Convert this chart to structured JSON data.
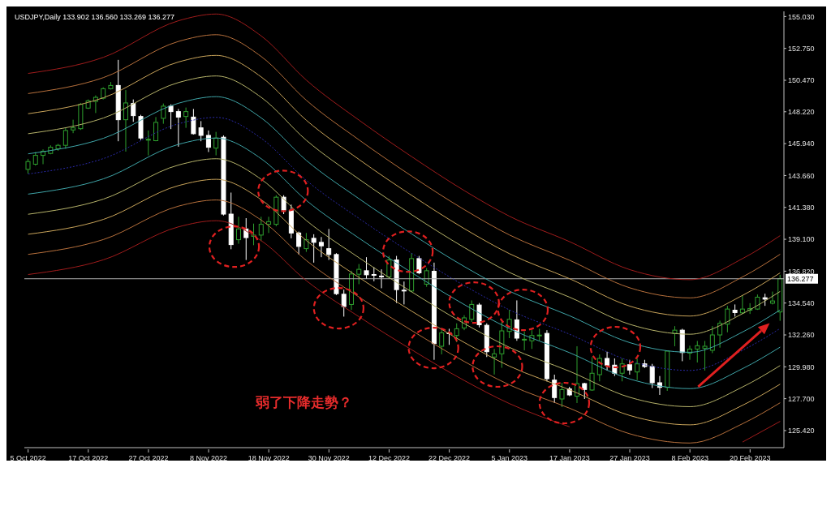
{
  "chart_data": {
    "type": "candlestick",
    "title": "USDJPY,Daily 133.902 136.560 133.269 136.277",
    "annotations": [
      "弱了下降走勢？"
    ],
    "categories": [
      "5 Oct 2022",
      null,
      null,
      null,
      null,
      null,
      null,
      null,
      "17 Oct 2022",
      null,
      null,
      null,
      null,
      null,
      null,
      null,
      "27 Oct 2022",
      null,
      null,
      null,
      null,
      null,
      null,
      null,
      "8 Nov 2022",
      null,
      null,
      null,
      null,
      null,
      null,
      null,
      "18 Nov 2022",
      null,
      null,
      null,
      null,
      null,
      null,
      null,
      "30 Nov 2022",
      null,
      null,
      null,
      null,
      null,
      null,
      null,
      "12 Dec 2022",
      null,
      null,
      null,
      null,
      null,
      null,
      null,
      "22 Dec 2022",
      null,
      null,
      null,
      null,
      null,
      null,
      null,
      "5 Jan 2023",
      null,
      null,
      null,
      null,
      null,
      null,
      null,
      "17 Jan 2023",
      null,
      null,
      null,
      null,
      null,
      null,
      null,
      "27 Jan 2023",
      null,
      null,
      null,
      null,
      null,
      null,
      null,
      "8 Feb 2023",
      null,
      null,
      null,
      null,
      null,
      null,
      null,
      "20 Feb 2023",
      null,
      null,
      null,
      null
    ],
    "ohlc": [
      [
        144.1,
        144.85,
        143.8,
        144.66
      ],
      [
        144.47,
        145.34,
        144.37,
        145.1
      ],
      [
        145.1,
        145.53,
        144.47,
        145.39
      ],
      [
        145.24,
        145.82,
        145.18,
        145.68
      ],
      [
        145.57,
        145.92,
        145.43,
        145.82
      ],
      [
        145.82,
        147.07,
        145.57,
        146.88
      ],
      [
        146.92,
        147.65,
        146.69,
        147.07
      ],
      [
        147.01,
        148.85,
        146.92,
        148.75
      ],
      [
        148.48,
        149.1,
        148.42,
        149.0
      ],
      [
        148.96,
        149.39,
        148.13,
        149.25
      ],
      [
        149.19,
        149.97,
        149.1,
        149.87
      ],
      [
        149.87,
        150.35,
        149.81,
        150.1
      ],
      [
        150.1,
        151.93,
        146.11,
        147.65
      ],
      [
        147.65,
        149.77,
        145.37,
        148.85
      ],
      [
        148.81,
        149.1,
        147.5,
        147.94
      ],
      [
        147.88,
        148.0,
        146.2,
        146.34
      ],
      [
        146.2,
        146.88,
        145.1,
        146.25
      ],
      [
        146.15,
        147.84,
        146.11,
        147.46
      ],
      [
        147.75,
        148.81,
        147.36,
        148.62
      ],
      [
        148.62,
        148.75,
        146.98,
        148.23
      ],
      [
        148.23,
        148.42,
        145.72,
        147.84
      ],
      [
        147.88,
        148.52,
        147.07,
        148.23
      ],
      [
        147.84,
        148.42,
        146.59,
        146.65
      ],
      [
        147.07,
        147.55,
        146.11,
        146.53
      ],
      [
        146.53,
        146.88,
        145.34,
        145.68
      ],
      [
        145.62,
        146.78,
        145.1,
        146.34
      ],
      [
        146.4,
        146.53,
        140.8,
        140.9
      ],
      [
        140.9,
        142.44,
        138.39,
        138.72
      ],
      [
        139.07,
        140.71,
        138.78,
        139.84
      ],
      [
        139.84,
        140.61,
        137.62,
        139.22
      ],
      [
        139.31,
        140.22,
        138.68,
        139.4
      ],
      [
        139.4,
        140.71,
        138.97,
        140.17
      ],
      [
        140.17,
        140.71,
        139.55,
        140.36
      ],
      [
        140.17,
        142.25,
        140.03,
        142.11
      ],
      [
        142.11,
        142.25,
        140.9,
        141.19
      ],
      [
        141.15,
        141.58,
        139.17,
        139.55
      ],
      [
        139.55,
        139.65,
        138.01,
        138.59
      ],
      [
        138.43,
        139.55,
        138.2,
        139.07
      ],
      [
        139.17,
        139.46,
        137.43,
        138.88
      ],
      [
        138.88,
        139.26,
        137.82,
        138.63
      ],
      [
        138.43,
        139.84,
        137.62,
        138.01
      ],
      [
        138.01,
        138.11,
        135.11,
        135.21
      ],
      [
        135.17,
        135.5,
        133.57,
        134.29
      ],
      [
        134.44,
        136.85,
        134.05,
        136.62
      ],
      [
        136.6,
        137.33,
        135.89,
        136.95
      ],
      [
        136.85,
        137.82,
        136.27,
        136.56
      ],
      [
        136.58,
        137.1,
        136.1,
        136.56
      ],
      [
        136.47,
        136.95,
        135.6,
        136.46
      ],
      [
        136.41,
        137.91,
        136.27,
        137.62
      ],
      [
        137.62,
        137.91,
        134.54,
        135.5
      ],
      [
        135.46,
        136.08,
        134.44,
        135.44
      ],
      [
        135.4,
        138.11,
        135.31,
        137.72
      ],
      [
        137.72,
        137.91,
        136.6,
        136.7
      ],
      [
        135.89,
        137.04,
        135.7,
        136.85
      ],
      [
        136.81,
        137.43,
        130.48,
        131.64
      ],
      [
        131.45,
        132.6,
        130.87,
        132.41
      ],
      [
        132.41,
        132.7,
        131.55,
        132.36
      ],
      [
        132.22,
        133.09,
        131.74,
        132.7
      ],
      [
        132.76,
        133.67,
        132.6,
        133.48
      ],
      [
        133.38,
        134.73,
        133.19,
        134.44
      ],
      [
        134.4,
        134.54,
        132.8,
        132.99
      ],
      [
        132.95,
        133.09,
        130.68,
        131.06
      ],
      [
        130.68,
        131.26,
        129.43,
        130.91
      ],
      [
        130.91,
        133.19,
        129.91,
        132.55
      ],
      [
        132.51,
        134.05,
        132.03,
        133.38
      ],
      [
        133.34,
        134.73,
        131.84,
        132.03
      ],
      [
        131.93,
        132.51,
        131.16,
        131.95
      ],
      [
        131.84,
        132.6,
        131.26,
        132.22
      ],
      [
        132.2,
        132.7,
        131.84,
        132.25
      ],
      [
        132.37,
        132.6,
        128.94,
        129.13
      ],
      [
        129.03,
        129.42,
        127.39,
        127.78
      ],
      [
        127.68,
        128.84,
        127.1,
        128.35
      ],
      [
        128.4,
        128.55,
        127.88,
        127.97
      ],
      [
        127.88,
        131.45,
        127.39,
        128.78
      ],
      [
        128.78,
        128.84,
        127.68,
        128.36
      ],
      [
        128.32,
        130.67,
        128.26,
        129.52
      ],
      [
        129.42,
        130.87,
        128.94,
        130.58
      ],
      [
        130.58,
        131.06,
        129.71,
        130.1
      ],
      [
        130.1,
        130.58,
        129.32,
        129.52
      ],
      [
        129.52,
        130.58,
        128.94,
        130.19
      ],
      [
        130.13,
        130.48,
        129.42,
        129.75
      ],
      [
        129.61,
        130.58,
        129.03,
        130.19
      ],
      [
        130.19,
        130.48,
        129.9,
        130.0
      ],
      [
        130.0,
        130.19,
        128.46,
        128.84
      ],
      [
        128.84,
        129.32,
        127.97,
        128.51
      ],
      [
        128.51,
        131.16,
        128.26,
        131.1
      ],
      [
        132.37,
        132.89,
        131.45,
        132.6
      ],
      [
        132.6,
        132.7,
        130.38,
        131.0
      ],
      [
        130.96,
        131.49,
        130.48,
        131.25
      ],
      [
        131.25,
        131.83,
        130.29,
        131.49
      ],
      [
        131.31,
        131.83,
        129.71,
        131.45
      ],
      [
        131.16,
        132.89,
        130.96,
        132.26
      ],
      [
        132.26,
        133.28,
        131.35,
        133.09
      ],
      [
        133.03,
        134.34,
        132.45,
        134.11
      ],
      [
        134.03,
        134.44,
        133.57,
        133.86
      ],
      [
        133.84,
        135.11,
        133.76,
        134.11
      ],
      [
        134.03,
        134.53,
        133.76,
        134.15
      ],
      [
        134.11,
        135.15,
        134.05,
        134.96
      ],
      [
        134.92,
        135.21,
        134.34,
        134.82
      ],
      [
        134.53,
        135.36,
        134.44,
        134.69
      ],
      [
        133.902,
        136.56,
        133.269,
        136.277
      ]
    ],
    "colors": [
      "#2ea02e",
      "#2ea02e",
      "#2ea02e",
      "#2ea02e",
      "#2ea02e",
      "#2ea02e",
      "#2ea02e",
      "#2ea02e",
      "#2ea02e",
      "#2ea02e",
      "#2ea02e",
      "#2ea02e",
      "#ffffff",
      "#2ea02e",
      "#ffffff",
      "#ffffff",
      "#2ea02e",
      "#2ea02e",
      "#2ea02e",
      "#ffffff",
      "#ffffff",
      "#2ea02e",
      "#ffffff",
      "#ffffff",
      "#ffffff",
      "#2ea02e",
      "#ffffff",
      "#ffffff",
      "#2ea02e",
      "#ffffff",
      "#2ea02e",
      "#2ea02e",
      "#2ea02e",
      "#2ea02e",
      "#ffffff",
      "#ffffff",
      "#ffffff",
      "#2ea02e",
      "#ffffff",
      "#ffffff",
      "#ffffff",
      "#ffffff",
      "#ffffff",
      "#2ea02e",
      "#2ea02e",
      "#ffffff",
      "#ffffff",
      "#ffffff",
      "#2ea02e",
      "#ffffff",
      "#ffffff",
      "#2ea02e",
      "#ffffff",
      "#2ea02e",
      "#ffffff",
      "#2ea02e",
      "#ffffff",
      "#2ea02e",
      "#2ea02e",
      "#2ea02e",
      "#ffffff",
      "#ffffff",
      "#2ea02e",
      "#2ea02e",
      "#2ea02e",
      "#ffffff",
      "#2ea02e",
      "#2ea02e",
      "#2ea02e",
      "#ffffff",
      "#ffffff",
      "#2ea02e",
      "#ffffff",
      "#2ea02e",
      "#ffffff",
      "#2ea02e",
      "#2ea02e",
      "#ffffff",
      "#ffffff",
      "#2ea02e",
      "#ffffff",
      "#2ea02e",
      "#ffffff",
      "#ffffff",
      "#ffffff",
      "#2ea02e",
      "#2ea02e",
      "#ffffff",
      "#2ea02e",
      "#2ea02e",
      "#2ea02e",
      "#2ea02e",
      "#2ea02e",
      "#2ea02e",
      "#ffffff",
      "#2ea02e",
      "#2ea02e",
      "#2ea02e",
      "#ffffff",
      "#2ea02e",
      "#2ea02e"
    ],
    "series": [
      {
        "type": "line",
        "color": "#a01c1c",
        "values": [
          150.96,
          null,
          null,
          null,
          null,
          null,
          null,
          null,
          null,
          null,
          152.11,
          null,
          null,
          null,
          null,
          null,
          null,
          null,
          null,
          null,
          154.73,
          null,
          null,
          null,
          null,
          155.21,
          null,
          null,
          null,
          null,
          null,
          153.64,
          null,
          null,
          null,
          null,
          null,
          150.48,
          null,
          null,
          null,
          null,
          null,
          null,
          147.62,
          null,
          null,
          null,
          null,
          null,
          null,
          145.01,
          null,
          null,
          null,
          null,
          null,
          null,
          142.58,
          null,
          null,
          null,
          null,
          null,
          140.75,
          null,
          null,
          null,
          null,
          null,
          null,
          null,
          138.93,
          null,
          null,
          null,
          null,
          null,
          null,
          null,
          136.93,
          null,
          null,
          null,
          null,
          null,
          null,
          null,
          136.21,
          null,
          null,
          null,
          null,
          null,
          null,
          137.72,
          null,
          null,
          null,
          null,
          139.36
        ]
      },
      {
        "type": "line",
        "color": "#b7703c",
        "values": [
          149.52,
          null,
          null,
          null,
          null,
          null,
          null,
          null,
          null,
          null,
          150.66,
          null,
          null,
          null,
          null,
          null,
          null,
          null,
          null,
          null,
          153.25,
          null,
          null,
          null,
          null,
          153.73,
          null,
          null,
          null,
          null,
          null,
          152.17,
          null,
          null,
          null,
          null,
          null,
          149.04,
          null,
          null,
          null,
          null,
          null,
          null,
          146.21,
          null,
          null,
          null,
          null,
          null,
          null,
          143.62,
          null,
          null,
          null,
          null,
          null,
          null,
          141.22,
          null,
          null,
          null,
          null,
          null,
          139.41,
          null,
          null,
          null,
          null,
          null,
          null,
          null,
          137.6,
          null,
          null,
          null,
          null,
          null,
          null,
          null,
          135.63,
          null,
          null,
          null,
          null,
          null,
          null,
          null,
          134.91,
          null,
          null,
          null,
          null,
          null,
          null,
          136.41,
          null,
          null,
          null,
          null,
          138.03
        ]
      },
      {
        "type": "line",
        "color": "#c9a45a",
        "values": [
          148.08,
          null,
          null,
          null,
          null,
          null,
          null,
          null,
          null,
          null,
          149.22,
          null,
          null,
          null,
          null,
          null,
          null,
          null,
          null,
          null,
          151.78,
          null,
          null,
          null,
          null,
          152.25,
          null,
          null,
          null,
          null,
          null,
          150.71,
          null,
          null,
          null,
          null,
          null,
          147.61,
          null,
          null,
          null,
          null,
          null,
          null,
          144.81,
          null,
          null,
          null,
          null,
          null,
          null,
          142.24,
          null,
          null,
          null,
          null,
          null,
          null,
          139.86,
          null,
          null,
          null,
          null,
          null,
          138.07,
          null,
          null,
          null,
          null,
          null,
          null,
          null,
          136.28,
          null,
          null,
          null,
          null,
          null,
          null,
          null,
          134.32,
          null,
          null,
          null,
          null,
          null,
          null,
          null,
          133.61,
          null,
          null,
          null,
          null,
          null,
          null,
          135.09,
          null,
          null,
          null,
          null,
          136.7
        ]
      },
      {
        "type": "line",
        "color": "#b6b36a",
        "values": [
          146.65,
          null,
          null,
          null,
          null,
          null,
          null,
          null,
          null,
          null,
          147.77,
          null,
          null,
          null,
          null,
          null,
          null,
          null,
          null,
          null,
          150.31,
          null,
          null,
          null,
          null,
          150.78,
          null,
          null,
          null,
          null,
          null,
          149.25,
          null,
          null,
          null,
          null,
          null,
          146.18,
          null,
          null,
          null,
          null,
          null,
          null,
          143.4,
          null,
          null,
          null,
          null,
          null,
          null,
          140.86,
          null,
          null,
          null,
          null,
          null,
          null,
          138.51,
          null,
          null,
          null,
          null,
          null,
          136.73,
          null,
          null,
          null,
          null,
          null,
          null,
          null,
          134.96,
          null,
          null,
          null,
          null,
          null,
          null,
          null,
          133.02,
          null,
          null,
          null,
          null,
          null,
          null,
          null,
          132.31,
          null,
          null,
          null,
          null,
          null,
          null,
          133.78,
          null,
          null,
          null,
          null,
          135.37
        ]
      },
      {
        "type": "line",
        "color": "#3fa5a8",
        "values": [
          145.21,
          null,
          null,
          null,
          null,
          null,
          null,
          null,
          null,
          null,
          146.32,
          null,
          null,
          null,
          null,
          null,
          null,
          null,
          null,
          null,
          148.83,
          null,
          null,
          null,
          null,
          149.3,
          null,
          null,
          null,
          null,
          null,
          147.78,
          null,
          null,
          null,
          null,
          null,
          144.74,
          null,
          null,
          null,
          null,
          null,
          null,
          142.0,
          null,
          null,
          null,
          null,
          null,
          null,
          139.48,
          null,
          null,
          null,
          null,
          null,
          null,
          137.15,
          null,
          null,
          null,
          null,
          null,
          135.39,
          null,
          null,
          null,
          null,
          null,
          null,
          null,
          133.63,
          null,
          null,
          null,
          null,
          null,
          null,
          null,
          131.71,
          null,
          null,
          null,
          null,
          null,
          null,
          null,
          131.02,
          null,
          null,
          null,
          null,
          null,
          null,
          132.47,
          null,
          null,
          null,
          null,
          134.05
        ]
      },
      {
        "type": "line",
        "color": "#2a2aa8",
        "line_style": "dotted",
        "values": [
          143.77,
          null,
          null,
          null,
          null,
          null,
          null,
          null,
          null,
          null,
          144.87,
          null,
          null,
          null,
          null,
          null,
          null,
          null,
          null,
          null,
          147.36,
          null,
          null,
          null,
          null,
          147.82,
          null,
          null,
          null,
          null,
          null,
          146.32,
          null,
          null,
          null,
          null,
          null,
          143.31,
          null,
          null,
          null,
          null,
          null,
          null,
          140.59,
          null,
          null,
          null,
          null,
          null,
          null,
          138.1,
          null,
          null,
          null,
          null,
          null,
          null,
          135.79,
          null,
          null,
          null,
          null,
          null,
          134.05,
          null,
          null,
          null,
          null,
          null,
          null,
          null,
          132.31,
          null,
          null,
          null,
          null,
          null,
          null,
          null,
          130.41,
          null,
          null,
          null,
          null,
          null,
          null,
          null,
          129.72,
          null,
          null,
          null,
          null,
          null,
          null,
          131.16,
          null,
          null,
          null,
          null,
          132.72
        ]
      },
      {
        "type": "line",
        "color": "#3fa5a8",
        "values": [
          142.33,
          null,
          null,
          null,
          null,
          null,
          null,
          null,
          null,
          null,
          143.42,
          null,
          null,
          null,
          null,
          null,
          null,
          null,
          null,
          null,
          145.89,
          null,
          null,
          null,
          null,
          146.34,
          null,
          null,
          null,
          null,
          null,
          144.86,
          null,
          null,
          null,
          null,
          null,
          141.88,
          null,
          null,
          null,
          null,
          null,
          null,
          139.18,
          null,
          null,
          null,
          null,
          null,
          null,
          136.72,
          null,
          null,
          null,
          null,
          null,
          null,
          134.43,
          null,
          null,
          null,
          null,
          null,
          132.71,
          null,
          null,
          null,
          null,
          null,
          null,
          null,
          130.99,
          null,
          null,
          null,
          null,
          null,
          null,
          null,
          129.11,
          null,
          null,
          null,
          null,
          null,
          null,
          null,
          128.42,
          null,
          null,
          null,
          null,
          null,
          null,
          129.85,
          null,
          null,
          null,
          null,
          131.39
        ]
      },
      {
        "type": "line",
        "color": "#b6b36a",
        "values": [
          140.89,
          null,
          null,
          null,
          null,
          null,
          null,
          null,
          null,
          null,
          141.97,
          null,
          null,
          null,
          null,
          null,
          null,
          null,
          null,
          null,
          144.41,
          null,
          null,
          null,
          null,
          144.86,
          null,
          null,
          null,
          null,
          null,
          143.39,
          null,
          null,
          null,
          null,
          null,
          140.44,
          null,
          null,
          null,
          null,
          null,
          null,
          137.78,
          null,
          null,
          null,
          null,
          null,
          null,
          135.34,
          null,
          null,
          null,
          null,
          null,
          null,
          133.07,
          null,
          null,
          null,
          null,
          null,
          131.37,
          null,
          null,
          null,
          null,
          null,
          null,
          null,
          129.66,
          null,
          null,
          null,
          null,
          null,
          null,
          null,
          127.8,
          null,
          null,
          null,
          null,
          null,
          null,
          null,
          127.13,
          null,
          null,
          null,
          null,
          null,
          null,
          128.54,
          null,
          null,
          null,
          null,
          130.07
        ]
      },
      {
        "type": "line",
        "color": "#c9a45a",
        "values": [
          139.46,
          null,
          null,
          null,
          null,
          null,
          null,
          null,
          null,
          null,
          140.52,
          null,
          null,
          null,
          null,
          null,
          null,
          null,
          null,
          null,
          142.94,
          null,
          null,
          null,
          null,
          143.39,
          null,
          null,
          null,
          null,
          null,
          141.93,
          null,
          null,
          null,
          null,
          null,
          139.01,
          null,
          null,
          null,
          null,
          null,
          null,
          136.37,
          null,
          null,
          null,
          null,
          null,
          null,
          133.96,
          null,
          null,
          null,
          null,
          null,
          null,
          131.72,
          null,
          null,
          null,
          null,
          null,
          130.03,
          null,
          null,
          null,
          null,
          null,
          null,
          null,
          128.34,
          null,
          null,
          null,
          null,
          null,
          null,
          null,
          126.5,
          null,
          null,
          null,
          null,
          null,
          null,
          null,
          125.83,
          null,
          null,
          null,
          null,
          null,
          null,
          127.23,
          null,
          null,
          null,
          null,
          128.74
        ]
      },
      {
        "type": "line",
        "color": "#b7703c",
        "values": [
          138.02,
          null,
          null,
          null,
          null,
          null,
          null,
          null,
          null,
          null,
          139.08,
          null,
          null,
          null,
          null,
          null,
          null,
          null,
          null,
          null,
          141.47,
          null,
          null,
          null,
          null,
          141.91,
          null,
          null,
          null,
          null,
          null,
          140.47,
          null,
          null,
          null,
          null,
          null,
          137.58,
          null,
          null,
          null,
          null,
          null,
          null,
          134.97,
          null,
          null,
          null,
          null,
          null,
          null,
          132.58,
          null,
          null,
          null,
          null,
          null,
          null,
          130.36,
          null,
          null,
          null,
          null,
          null,
          128.69,
          null,
          null,
          null,
          null,
          null,
          null,
          null,
          127.02,
          null,
          null,
          null,
          null,
          null,
          null,
          null,
          125.19,
          null,
          null,
          null,
          null,
          null,
          null,
          null,
          124.53,
          null,
          null,
          null,
          null,
          null,
          null,
          125.91,
          null,
          null,
          null,
          null,
          127.41
        ]
      },
      {
        "type": "line",
        "color": "#a01c1c",
        "values": [
          136.58,
          null,
          null,
          null,
          null,
          null,
          null,
          null,
          null,
          null,
          137.63,
          null,
          null,
          null,
          null,
          null,
          null,
          null,
          null,
          null,
          139.99,
          null,
          null,
          null,
          null,
          140.43,
          null,
          null,
          null,
          null,
          null,
          139.0,
          null,
          null,
          null,
          null,
          null,
          136.14,
          null,
          null,
          null,
          null,
          null,
          null,
          133.56,
          null,
          null,
          null,
          null,
          null,
          null,
          131.2,
          null,
          null,
          null,
          null,
          null,
          null,
          129.0,
          null,
          null,
          null,
          null,
          null,
          127.35,
          null,
          null,
          null,
          null,
          null,
          null,
          null,
          125.69,
          null,
          null,
          null,
          null,
          null,
          null,
          null,
          null,
          null,
          null,
          null,
          null,
          null,
          null,
          null,
          null,
          null,
          null,
          null,
          null,
          null,
          null,
          null,
          null,
          null,
          null,
          null,
          null
        ]
      },
      {
        "type": "line",
        "color": "#a01c1c",
        "values": [
          null,
          null,
          null,
          null,
          null,
          null,
          null,
          null,
          null,
          null,
          null,
          null,
          null,
          null,
          null,
          null,
          null,
          null,
          null,
          null,
          null,
          null,
          null,
          null,
          null,
          null,
          null,
          null,
          null,
          null,
          null,
          null,
          null,
          null,
          null,
          null,
          null,
          null,
          null,
          null,
          null,
          null,
          null,
          null,
          null,
          null,
          null,
          null,
          null,
          null,
          null,
          null,
          null,
          null,
          null,
          null,
          null,
          null,
          null,
          null,
          null,
          null,
          null,
          null,
          null,
          null,
          null,
          null,
          null,
          null,
          null,
          null,
          null,
          null,
          null,
          null,
          null,
          null,
          null,
          null,
          null,
          null,
          null,
          null,
          null,
          null,
          null,
          null,
          null,
          null,
          null,
          null,
          null,
          null,
          null,
          124.6,
          null,
          null,
          null,
          null,
          126.08
        ]
      }
    ],
    "ref_lines": [
      {
        "axis": "y",
        "value": 136.277,
        "label": "136.277",
        "color": "#b0b0b0"
      }
    ],
    "ylim": [
      124.2,
      155.4
    ],
    "yticks": [
      {
        "value": 155.03,
        "label": "155.030"
      },
      {
        "value": 152.75,
        "label": "152.750"
      },
      {
        "value": 150.47,
        "label": "150.470"
      },
      {
        "value": 148.22,
        "label": "148.220"
      },
      {
        "value": 145.94,
        "label": "145.940"
      },
      {
        "value": 143.66,
        "label": "143.660"
      },
      {
        "value": 141.38,
        "label": "141.380"
      },
      {
        "value": 139.1,
        "label": "139.100"
      },
      {
        "value": 136.82,
        "label": "136.820"
      },
      {
        "value": 134.54,
        "label": "134.540"
      },
      {
        "value": 132.26,
        "label": "132.260"
      },
      {
        "value": 129.98,
        "label": "129.980"
      },
      {
        "value": 127.7,
        "label": "127.700"
      },
      {
        "value": 125.42,
        "label": "125.420"
      }
    ]
  }
}
